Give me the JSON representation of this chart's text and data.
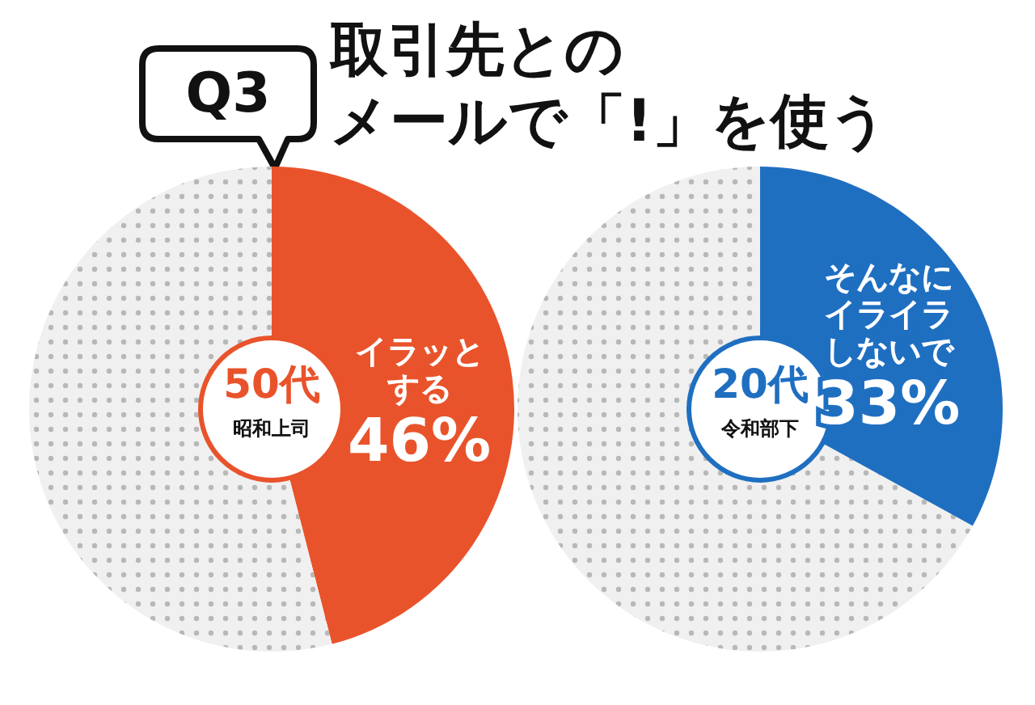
{
  "chart_data": [
    {
      "type": "other",
      "title": "取引先との",
      "subtitle": "メールで「!」を使う",
      "annotations": [
        "Q3"
      ]
    },
    {
      "type": "donut",
      "title": "50代",
      "subtitle": "昭和上司",
      "categories": [
        "イラッとする",
        null
      ],
      "values": [
        46,
        54
      ],
      "value_labels": [
        "46%",
        null
      ],
      "colors": [
        "#e9532b",
        "#f0f0f0"
      ]
    },
    {
      "type": "donut",
      "title": "20代",
      "subtitle": "令和部下",
      "categories": [
        "そんなにイライラしないで",
        null
      ],
      "values": [
        33,
        67
      ],
      "value_labels": [
        "33%",
        null
      ],
      "colors": [
        "#1f6fc1",
        "#f0f0f0"
      ]
    }
  ]
}
